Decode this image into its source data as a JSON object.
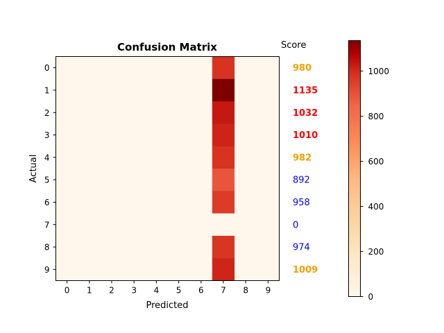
{
  "chart_data": {
    "type": "heatmap",
    "title": "Confusion Matrix",
    "xlabel": "Predicted",
    "ylabel": "Actual",
    "x_ticks": [
      "0",
      "1",
      "2",
      "3",
      "4",
      "5",
      "6",
      "7",
      "8",
      "9"
    ],
    "y_ticks": [
      "0",
      "1",
      "2",
      "3",
      "4",
      "5",
      "6",
      "7",
      "8",
      "9"
    ],
    "matrix": [
      [
        0,
        0,
        0,
        0,
        0,
        0,
        0,
        980,
        0,
        0
      ],
      [
        0,
        0,
        0,
        0,
        0,
        0,
        0,
        1135,
        0,
        0
      ],
      [
        0,
        0,
        0,
        0,
        0,
        0,
        0,
        1032,
        0,
        0
      ],
      [
        0,
        0,
        0,
        0,
        0,
        0,
        0,
        1010,
        0,
        0
      ],
      [
        0,
        0,
        0,
        0,
        0,
        0,
        0,
        982,
        0,
        0
      ],
      [
        0,
        0,
        0,
        0,
        0,
        0,
        0,
        892,
        0,
        0
      ],
      [
        0,
        0,
        0,
        0,
        0,
        0,
        0,
        958,
        0,
        0
      ],
      [
        0,
        0,
        0,
        0,
        0,
        0,
        0,
        0,
        0,
        0
      ],
      [
        0,
        0,
        0,
        0,
        0,
        0,
        0,
        974,
        0,
        0
      ],
      [
        0,
        0,
        0,
        0,
        0,
        0,
        0,
        1009,
        0,
        0
      ]
    ],
    "colormap": "OrRd",
    "value_range": [
      0,
      1135
    ],
    "colorbar": {
      "ticks": [
        0,
        200,
        400,
        600,
        800,
        1000
      ],
      "tick_labels": [
        "0",
        "200",
        "400",
        "600",
        "800",
        "1000"
      ]
    },
    "score_header": "Score",
    "scores": [
      {
        "label": "980",
        "color": "#f5a000",
        "bold": true
      },
      {
        "label": "1135",
        "color": "#ff0000",
        "bold": true
      },
      {
        "label": "1032",
        "color": "#ff0000",
        "bold": true
      },
      {
        "label": "1010",
        "color": "#ff0000",
        "bold": true
      },
      {
        "label": "982",
        "color": "#f5a000",
        "bold": true
      },
      {
        "label": "892",
        "color": "#0000ff",
        "bold": false
      },
      {
        "label": "958",
        "color": "#0000ff",
        "bold": false
      },
      {
        "label": "0",
        "color": "#0000ff",
        "bold": false
      },
      {
        "label": "974",
        "color": "#0000ff",
        "bold": false
      },
      {
        "label": "1009",
        "color": "#f5a000",
        "bold": true
      }
    ]
  }
}
